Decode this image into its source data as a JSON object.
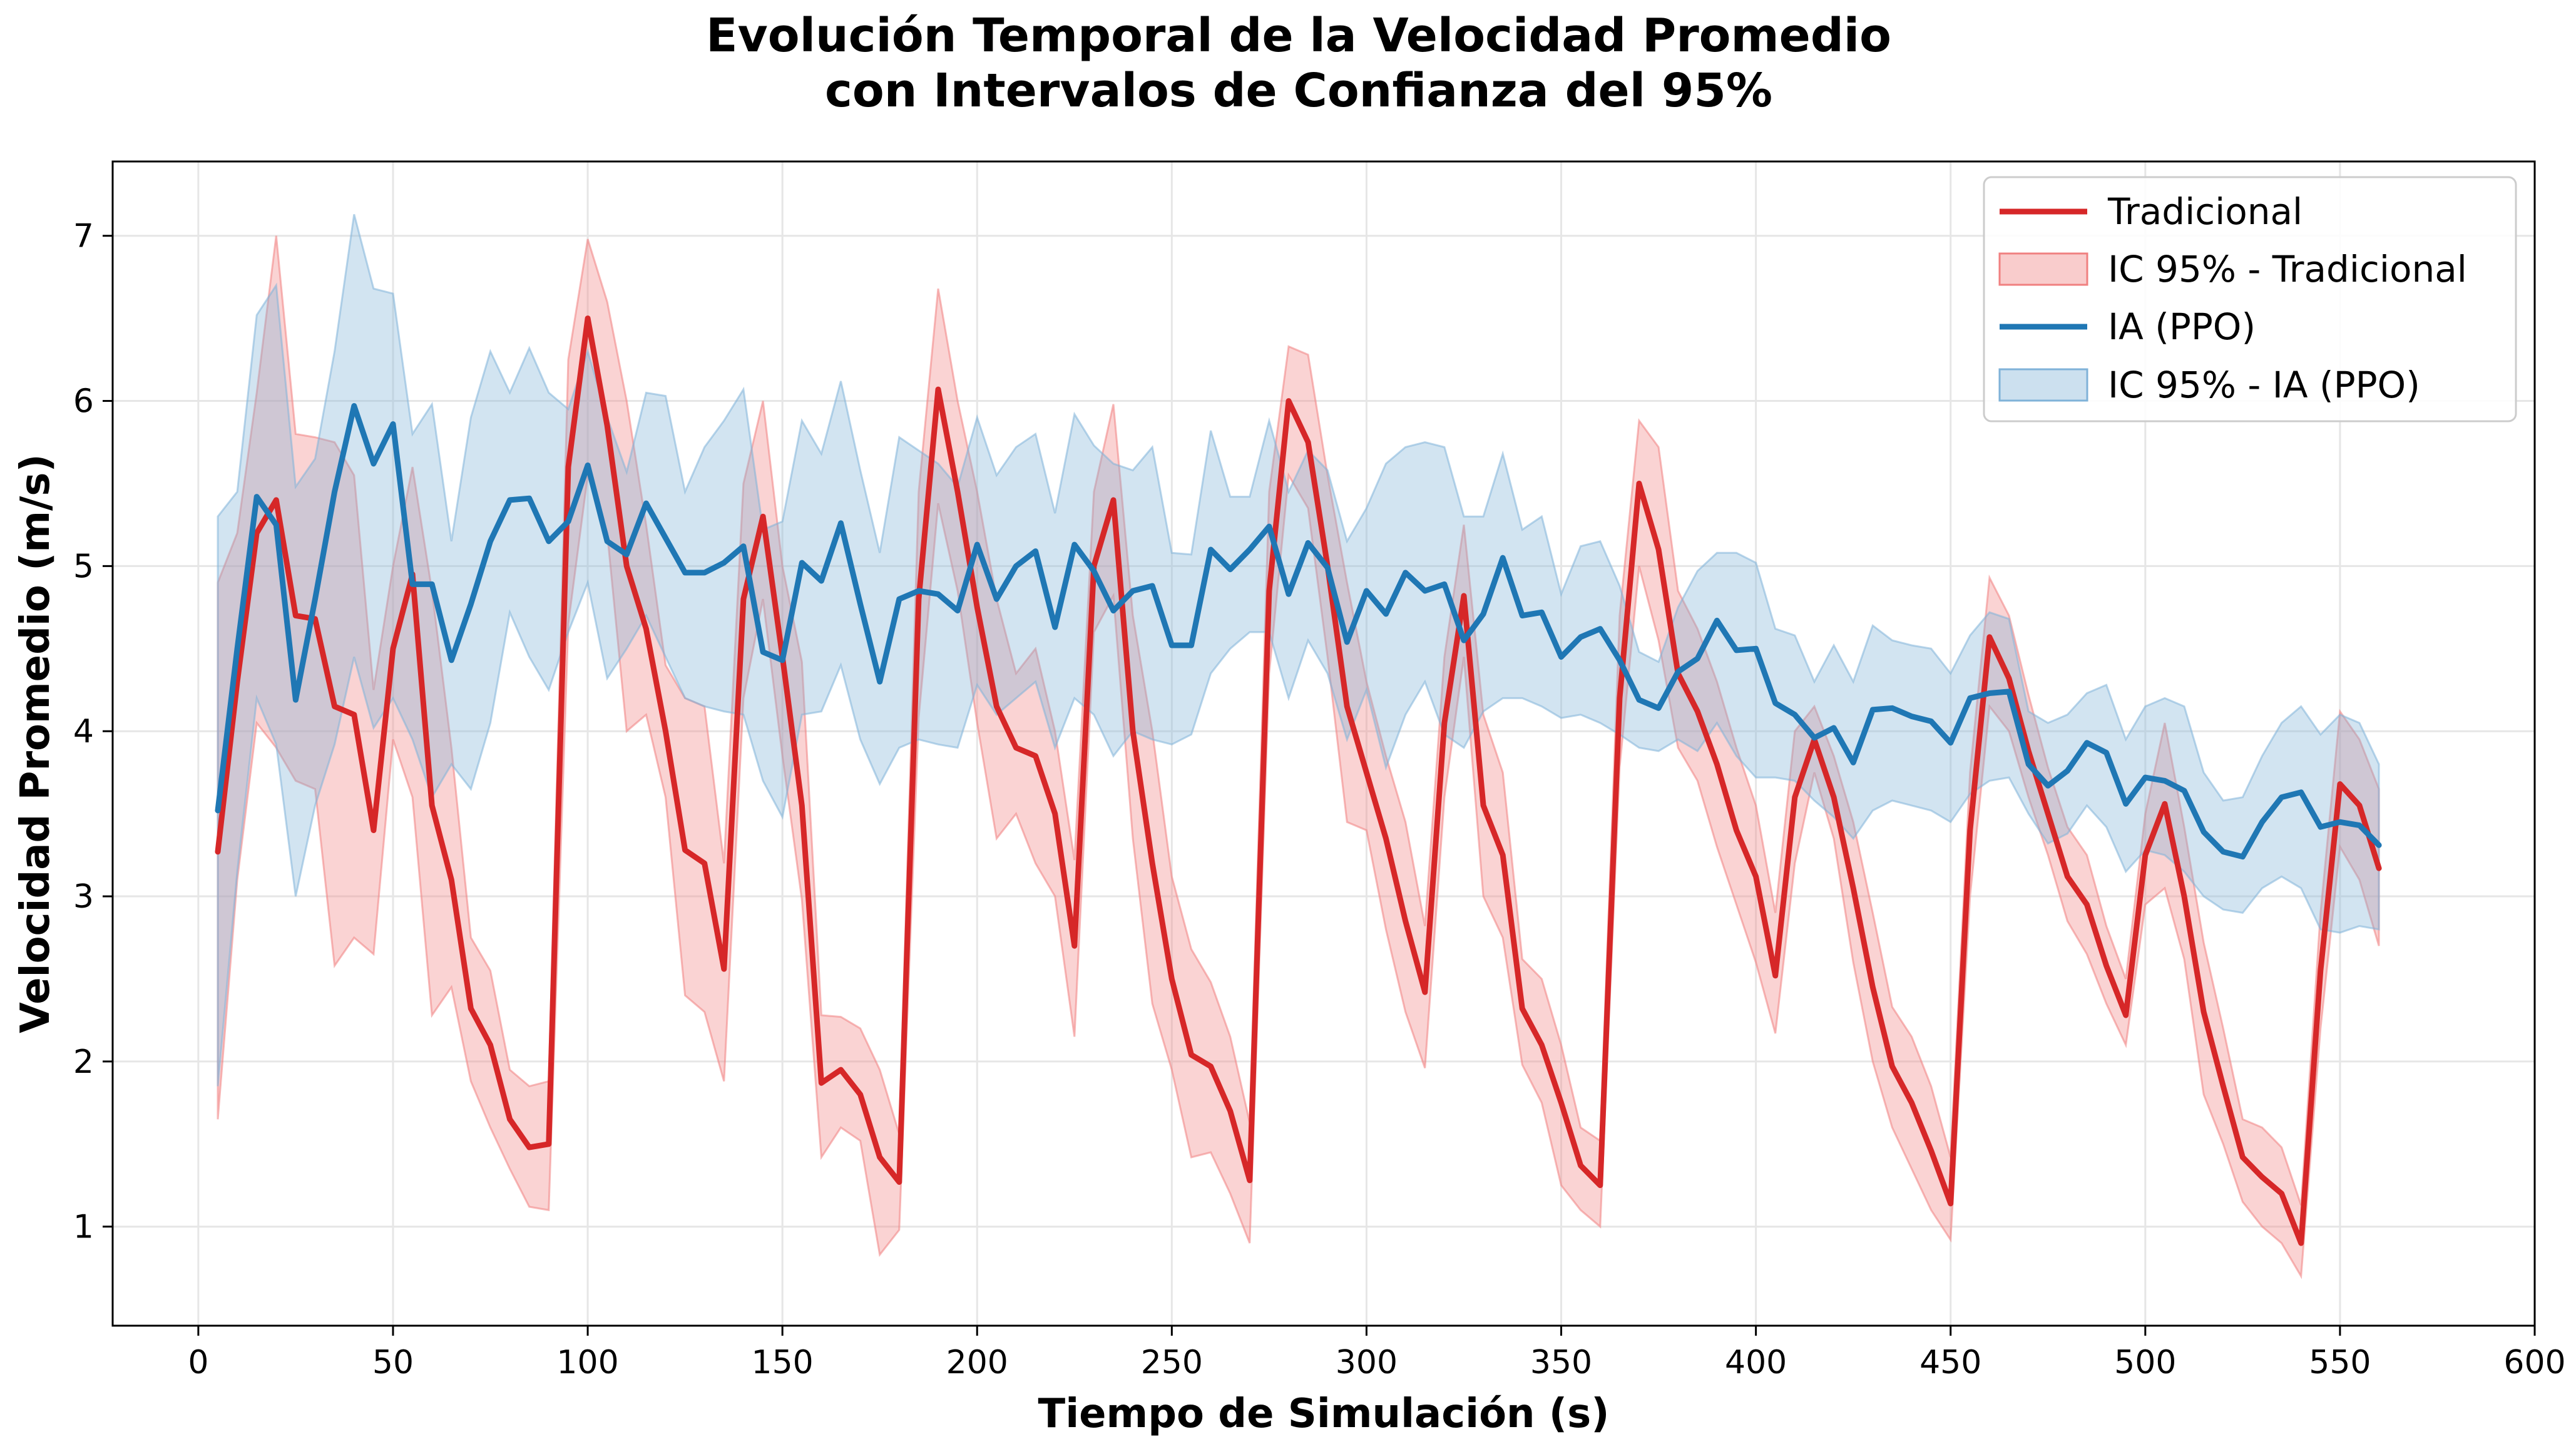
{
  "colors": {
    "tradicional": "#d62728",
    "tradicional_band": "#f08080",
    "ia": "#1f77b4",
    "ia_band": "#7fb2d8",
    "grid": "#e6e6e6",
    "axis": "#000000"
  },
  "chart_data": {
    "type": "line",
    "title": [
      "Evolución Temporal de la Velocidad Promedio",
      "con Intervalos de Confianza del 95%"
    ],
    "xlabel": "Tiempo de Simulación (s)",
    "ylabel": "Velocidad Promedio (m/s)",
    "xlim": [
      -22,
      600
    ],
    "ylim": [
      0.4,
      7.45
    ],
    "x_ticks": [
      0,
      50,
      100,
      150,
      200,
      250,
      300,
      350,
      400,
      450,
      500,
      550,
      600
    ],
    "y_ticks": [
      1,
      2,
      3,
      4,
      5,
      6,
      7
    ],
    "grid": true,
    "legend_position": "top-right",
    "legend": [
      "Tradicional",
      "IC 95% - Tradicional",
      "IA (PPO)",
      "IC 95% - IA (PPO)"
    ],
    "x": [
      5,
      10,
      15,
      20,
      25,
      30,
      35,
      40,
      45,
      50,
      55,
      60,
      65,
      70,
      75,
      80,
      85,
      90,
      95,
      100,
      105,
      110,
      115,
      120,
      125,
      130,
      135,
      140,
      145,
      150,
      155,
      160,
      165,
      170,
      175,
      180,
      185,
      190,
      195,
      200,
      205,
      210,
      215,
      220,
      225,
      230,
      235,
      240,
      245,
      250,
      255,
      260,
      265,
      270,
      275,
      280,
      285,
      290,
      295,
      300,
      305,
      310,
      315,
      320,
      325,
      330,
      335,
      340,
      345,
      350,
      355,
      360,
      365,
      370,
      375,
      380,
      385,
      390,
      395,
      400,
      405,
      410,
      415,
      420,
      425,
      430,
      435,
      440,
      445,
      450,
      455,
      460,
      465,
      470,
      475,
      480,
      485,
      490,
      495,
      500,
      505,
      510,
      515,
      520,
      525,
      530,
      535,
      540,
      545,
      550,
      555,
      560
    ],
    "series": [
      {
        "name": "Tradicional",
        "values": [
          3.27,
          4.3,
          5.2,
          5.4,
          4.7,
          4.68,
          4.15,
          4.1,
          3.4,
          4.5,
          4.95,
          3.55,
          3.1,
          2.32,
          2.1,
          1.65,
          1.48,
          1.5,
          5.6,
          6.5,
          5.85,
          5.0,
          4.62,
          4.0,
          3.28,
          3.2,
          2.56,
          4.8,
          5.3,
          4.45,
          3.55,
          1.87,
          1.95,
          1.8,
          1.42,
          1.27,
          4.8,
          6.07,
          5.45,
          4.75,
          4.15,
          3.9,
          3.85,
          3.5,
          2.7,
          5.0,
          5.4,
          4.0,
          3.2,
          2.5,
          2.04,
          1.97,
          1.7,
          1.28,
          4.85,
          6.0,
          5.75,
          5.0,
          4.15,
          3.75,
          3.35,
          2.85,
          2.42,
          4.05,
          4.82,
          3.55,
          3.25,
          2.32,
          2.1,
          1.75,
          1.37,
          1.25,
          4.2,
          5.5,
          5.1,
          4.35,
          4.12,
          3.8,
          3.4,
          3.12,
          2.52,
          3.6,
          3.95,
          3.6,
          3.05,
          2.45,
          1.97,
          1.75,
          1.46,
          1.14,
          3.4,
          4.57,
          4.32,
          3.88,
          3.5,
          3.12,
          2.95,
          2.58,
          2.28,
          3.25,
          3.56,
          3.0,
          2.3,
          1.85,
          1.42,
          1.3,
          1.2,
          0.9,
          2.55,
          3.68,
          3.55,
          3.17
        ],
        "ci_low": [
          1.65,
          3.1,
          4.05,
          3.9,
          3.7,
          3.65,
          2.58,
          2.75,
          2.65,
          3.95,
          3.6,
          2.28,
          2.45,
          1.88,
          1.6,
          1.35,
          1.12,
          1.1,
          4.65,
          5.55,
          5.2,
          4.0,
          4.1,
          3.6,
          2.4,
          2.3,
          1.88,
          4.2,
          4.8,
          3.85,
          2.98,
          1.42,
          1.6,
          1.52,
          0.83,
          0.98,
          4.08,
          5.38,
          4.85,
          4.05,
          3.35,
          3.5,
          3.2,
          3.0,
          2.15,
          4.6,
          4.82,
          3.35,
          2.35,
          1.95,
          1.42,
          1.45,
          1.2,
          0.9,
          4.35,
          5.55,
          5.35,
          4.45,
          3.45,
          3.4,
          2.8,
          2.3,
          1.96,
          3.6,
          4.45,
          3.0,
          2.75,
          1.98,
          1.75,
          1.25,
          1.1,
          1.0,
          3.78,
          5.0,
          4.55,
          3.9,
          3.7,
          3.3,
          2.95,
          2.6,
          2.17,
          3.2,
          3.75,
          3.35,
          2.6,
          2.0,
          1.6,
          1.35,
          1.1,
          0.92,
          3.0,
          4.15,
          4.0,
          3.6,
          3.25,
          2.85,
          2.65,
          2.35,
          2.1,
          2.95,
          3.05,
          2.62,
          1.8,
          1.5,
          1.15,
          1.0,
          0.9,
          0.7,
          2.2,
          3.3,
          3.1,
          2.7
        ],
        "ci_high": [
          4.9,
          5.2,
          6.05,
          7.0,
          5.8,
          5.78,
          5.75,
          5.55,
          4.25,
          5.0,
          5.6,
          4.85,
          3.9,
          2.75,
          2.55,
          1.95,
          1.85,
          1.88,
          6.25,
          6.98,
          6.6,
          6.0,
          5.25,
          4.4,
          4.2,
          4.15,
          3.2,
          5.5,
          6.0,
          5.0,
          4.42,
          2.28,
          2.27,
          2.2,
          1.95,
          1.56,
          5.45,
          6.68,
          6.0,
          5.45,
          4.8,
          4.35,
          4.5,
          4.0,
          3.22,
          5.45,
          5.98,
          4.7,
          4.0,
          3.12,
          2.68,
          2.48,
          2.15,
          1.63,
          5.45,
          6.33,
          6.28,
          5.55,
          4.9,
          4.3,
          3.85,
          3.45,
          2.82,
          4.45,
          5.25,
          4.1,
          3.75,
          2.62,
          2.5,
          2.1,
          1.6,
          1.52,
          4.7,
          5.88,
          5.72,
          4.85,
          4.62,
          4.3,
          3.9,
          3.55,
          2.9,
          4.0,
          4.15,
          3.85,
          3.45,
          2.9,
          2.33,
          2.15,
          1.85,
          1.42,
          3.75,
          4.93,
          4.7,
          4.22,
          3.78,
          3.42,
          3.25,
          2.82,
          2.5,
          3.5,
          4.05,
          3.42,
          2.72,
          2.2,
          1.65,
          1.6,
          1.48,
          1.13,
          2.9,
          4.12,
          3.95,
          3.65
        ]
      },
      {
        "name": "IA (PPO)",
        "values": [
          3.52,
          4.5,
          5.42,
          5.25,
          4.19,
          4.8,
          5.45,
          5.97,
          5.62,
          5.86,
          4.89,
          4.89,
          4.43,
          4.77,
          5.15,
          5.4,
          5.41,
          5.15,
          5.27,
          5.61,
          5.15,
          5.07,
          5.38,
          5.17,
          4.96,
          4.96,
          5.02,
          5.12,
          4.48,
          4.43,
          5.02,
          4.91,
          5.26,
          4.77,
          4.3,
          4.8,
          4.85,
          4.83,
          4.73,
          5.13,
          4.8,
          5.0,
          5.09,
          4.63,
          5.13,
          4.97,
          4.73,
          4.85,
          4.88,
          4.52,
          4.52,
          5.1,
          4.98,
          5.1,
          5.24,
          4.83,
          5.14,
          4.99,
          4.54,
          4.85,
          4.71,
          4.96,
          4.85,
          4.89,
          4.55,
          4.71,
          5.05,
          4.7,
          4.72,
          4.45,
          4.57,
          4.62,
          4.43,
          4.19,
          4.14,
          4.36,
          4.44,
          4.67,
          4.49,
          4.5,
          4.17,
          4.1,
          3.96,
          4.02,
          3.81,
          4.13,
          4.14,
          4.09,
          4.06,
          3.93,
          4.2,
          4.23,
          4.24,
          3.8,
          3.67,
          3.76,
          3.93,
          3.87,
          3.56,
          3.72,
          3.7,
          3.64,
          3.39,
          3.27,
          3.24,
          3.45,
          3.6,
          3.63,
          3.42,
          3.45,
          3.43,
          3.31
        ],
        "ci_low": [
          1.85,
          3.15,
          4.2,
          3.92,
          3.0,
          3.55,
          3.92,
          4.45,
          4.02,
          4.2,
          3.95,
          3.6,
          3.8,
          3.65,
          4.05,
          4.72,
          4.45,
          4.25,
          4.6,
          4.9,
          4.32,
          4.5,
          4.7,
          4.45,
          4.2,
          4.15,
          4.12,
          4.1,
          3.7,
          3.48,
          4.1,
          4.12,
          4.4,
          3.95,
          3.68,
          3.9,
          3.95,
          3.92,
          3.9,
          4.28,
          4.1,
          4.2,
          4.3,
          3.9,
          4.2,
          4.1,
          3.85,
          4.0,
          3.95,
          3.92,
          3.98,
          4.35,
          4.5,
          4.6,
          4.6,
          4.2,
          4.55,
          4.35,
          3.95,
          4.25,
          3.78,
          4.1,
          4.3,
          3.98,
          3.9,
          4.12,
          4.2,
          4.2,
          4.15,
          4.08,
          4.1,
          4.05,
          3.98,
          3.9,
          3.88,
          3.95,
          3.88,
          4.05,
          3.85,
          3.72,
          3.72,
          3.7,
          3.58,
          3.48,
          3.35,
          3.52,
          3.58,
          3.55,
          3.52,
          3.45,
          3.62,
          3.7,
          3.72,
          3.5,
          3.32,
          3.38,
          3.55,
          3.42,
          3.15,
          3.28,
          3.25,
          3.15,
          3.0,
          2.92,
          2.9,
          3.05,
          3.12,
          3.05,
          2.8,
          2.78,
          2.82,
          2.8
        ],
        "ci_high": [
          5.3,
          5.45,
          6.52,
          6.7,
          5.48,
          5.65,
          6.3,
          7.13,
          6.68,
          6.65,
          5.8,
          5.98,
          5.15,
          5.9,
          6.3,
          6.05,
          6.32,
          6.05,
          5.95,
          6.3,
          5.9,
          5.57,
          6.05,
          6.03,
          5.45,
          5.72,
          5.88,
          6.07,
          5.22,
          5.27,
          5.88,
          5.68,
          6.12,
          5.58,
          5.08,
          5.78,
          5.7,
          5.62,
          5.48,
          5.9,
          5.55,
          5.72,
          5.8,
          5.32,
          5.92,
          5.73,
          5.62,
          5.58,
          5.72,
          5.08,
          5.07,
          5.82,
          5.42,
          5.42,
          5.88,
          5.45,
          5.7,
          5.58,
          5.15,
          5.35,
          5.62,
          5.72,
          5.75,
          5.72,
          5.3,
          5.3,
          5.68,
          5.22,
          5.3,
          4.83,
          5.12,
          5.15,
          4.88,
          4.48,
          4.42,
          4.75,
          4.97,
          5.08,
          5.08,
          5.02,
          4.62,
          4.58,
          4.3,
          4.52,
          4.3,
          4.64,
          4.55,
          4.52,
          4.5,
          4.35,
          4.58,
          4.72,
          4.68,
          4.12,
          4.05,
          4.1,
          4.23,
          4.28,
          3.95,
          4.15,
          4.2,
          4.15,
          3.75,
          3.58,
          3.6,
          3.85,
          4.05,
          4.15,
          3.98,
          4.1,
          4.05,
          3.8
        ]
      }
    ]
  }
}
